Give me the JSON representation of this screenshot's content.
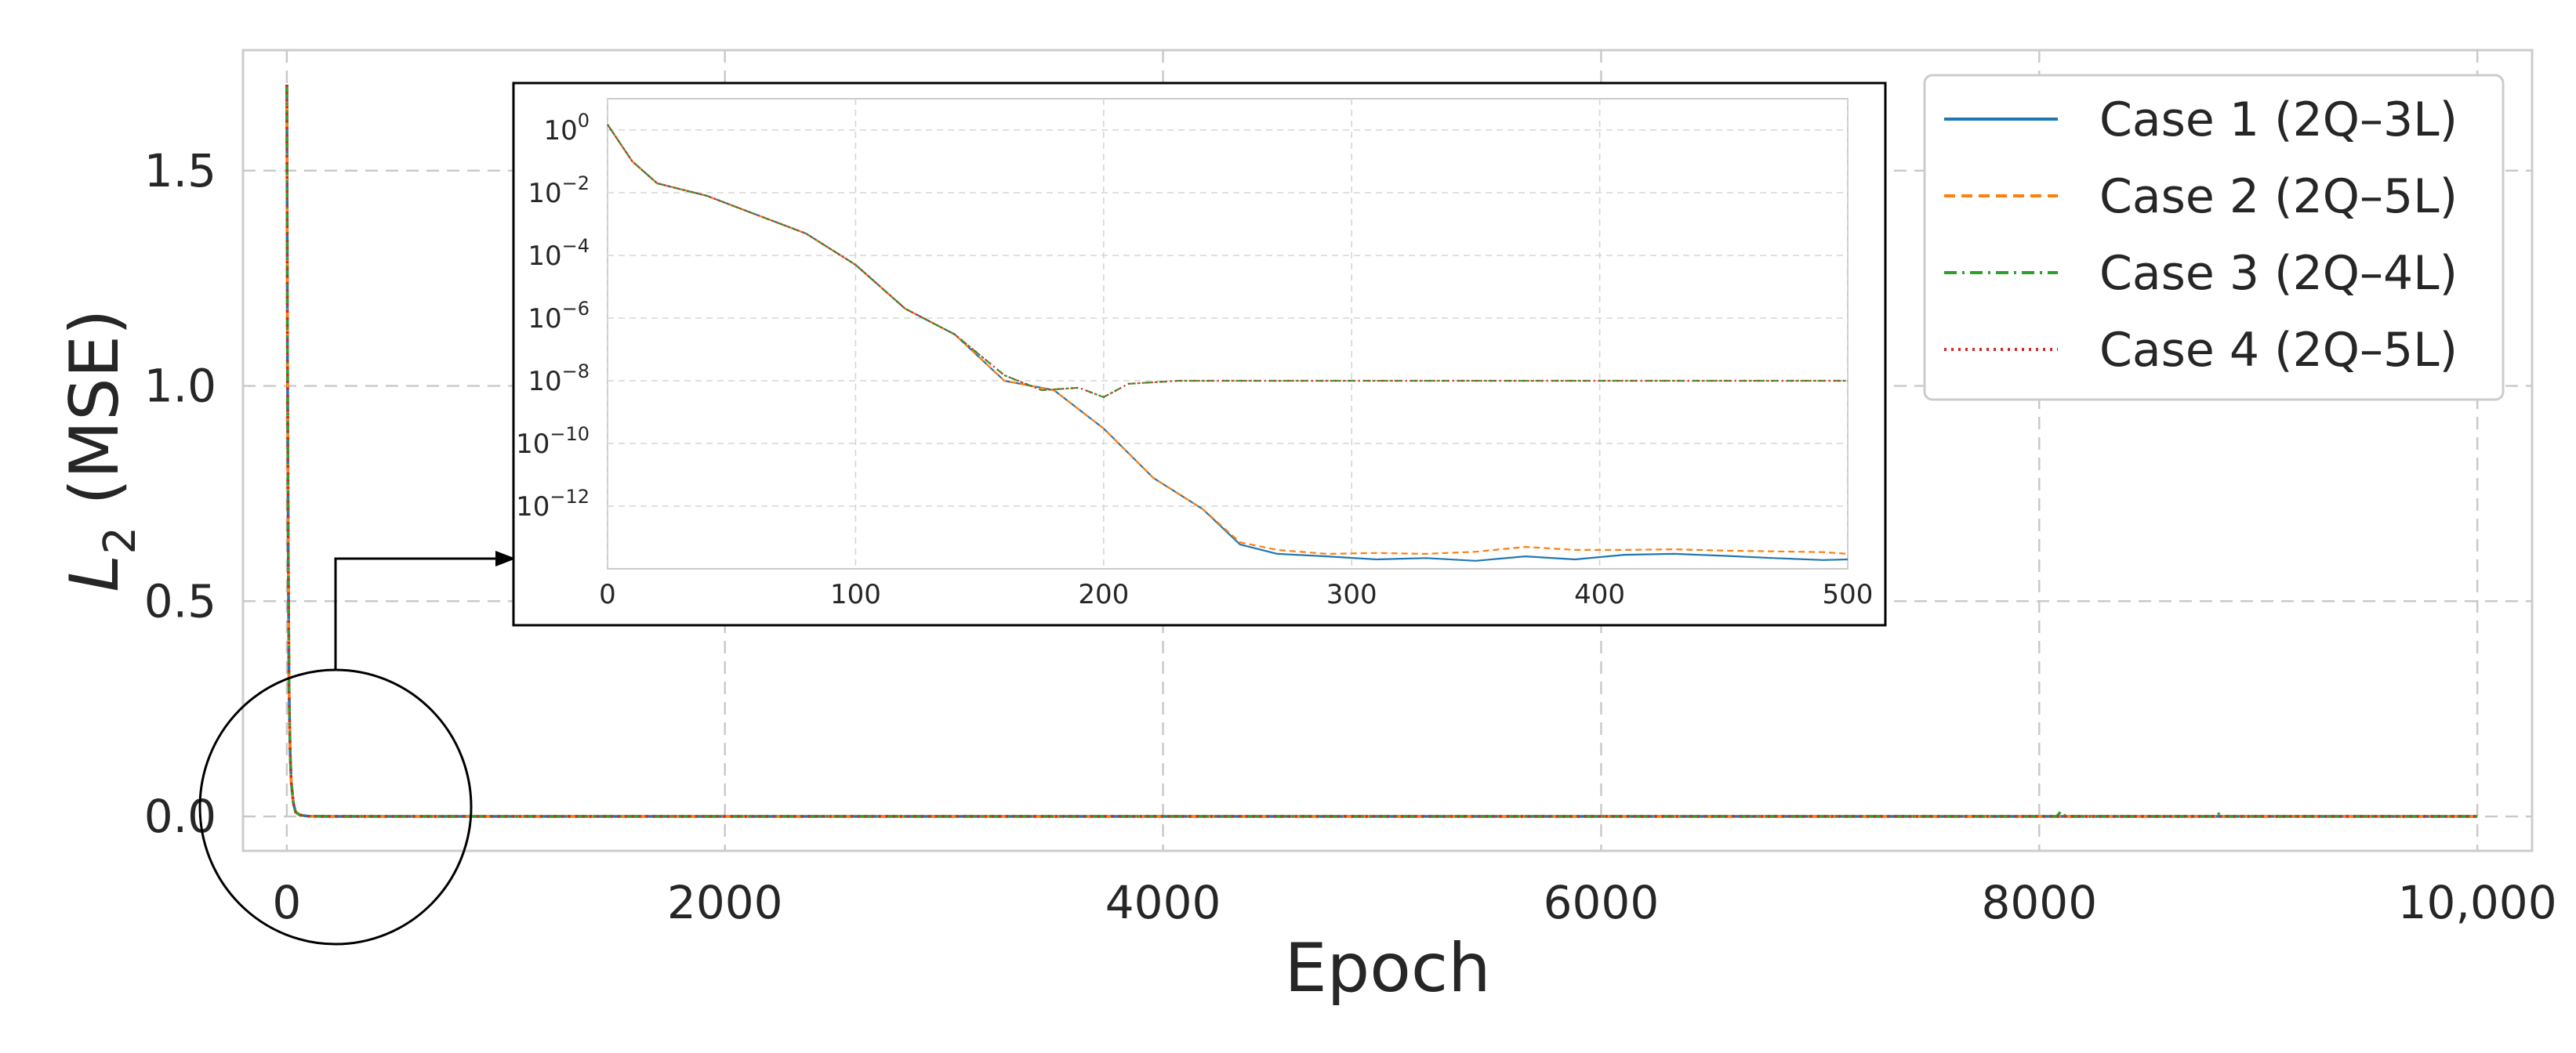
{
  "chart_data": [
    {
      "type": "line",
      "panel": "main",
      "title": "",
      "xlabel": "Epoch",
      "ylabel": "L2 (MSE)",
      "ylabel_base": "L",
      "ylabel_sub": "2",
      "ylabel_rest": " (MSE)",
      "xlim": [
        -200,
        10250
      ],
      "ylim": [
        -0.08,
        1.78
      ],
      "xticks": [
        0,
        2000,
        4000,
        6000,
        8000,
        10000
      ],
      "xtick_labels": [
        "0",
        "2000",
        "4000",
        "6000",
        "8000",
        "10,000"
      ],
      "yticks": [
        0.0,
        0.5,
        1.0,
        1.5
      ],
      "ytick_labels": [
        "0.0",
        "0.5",
        "1.0",
        "1.5"
      ],
      "grid": true,
      "legend_position": "top-right",
      "series": [
        {
          "name": "Case 1 (2Q–3L)",
          "color": "#1f77b4",
          "dash": "solid",
          "x": [
            0,
            3,
            6,
            10,
            15,
            20,
            30,
            40,
            60,
            100,
            200,
            1000,
            5000,
            8000,
            8100,
            8200,
            10000
          ],
          "y": [
            1.7,
            1.1,
            0.65,
            0.3,
            0.15,
            0.08,
            0.03,
            0.01,
            0.003,
            0.0005,
            1e-05,
            0,
            0,
            0,
            0,
            0,
            0
          ]
        },
        {
          "name": "Case 2 (2Q–5L)",
          "color": "#ff7f0e",
          "dash": "dashed",
          "x": [
            0,
            3,
            6,
            10,
            15,
            20,
            30,
            40,
            60,
            100,
            200,
            1000,
            5000,
            8000,
            10000
          ],
          "y": [
            1.7,
            1.1,
            0.65,
            0.3,
            0.15,
            0.08,
            0.03,
            0.01,
            0.003,
            0.0005,
            1e-05,
            0,
            0,
            0,
            0
          ]
        },
        {
          "name": "Case 3 (2Q–4L)",
          "color": "#2ca02c",
          "dash": "dashdot",
          "x": [
            0,
            3,
            6,
            10,
            15,
            20,
            30,
            40,
            60,
            100,
            200,
            1000,
            5000,
            8080,
            8100,
            8120,
            8800,
            8820,
            8840,
            10000
          ],
          "y": [
            1.7,
            1.1,
            0.65,
            0.3,
            0.15,
            0.08,
            0.03,
            0.01,
            0.003,
            0.0005,
            1e-05,
            0,
            0,
            0,
            0.012,
            0,
            0,
            0.006,
            0,
            0
          ]
        },
        {
          "name": "Case 4 (2Q–5L)",
          "color": "#d62728",
          "dash": "dotted",
          "x": [
            0,
            3,
            6,
            10,
            15,
            20,
            30,
            40,
            60,
            100,
            200,
            1000,
            5000,
            8000,
            10000
          ],
          "y": [
            1.7,
            1.1,
            0.65,
            0.3,
            0.15,
            0.08,
            0.03,
            0.01,
            0.003,
            0.0005,
            1e-05,
            0,
            0,
            0,
            0
          ]
        }
      ]
    },
    {
      "type": "line",
      "panel": "inset",
      "title": "",
      "xlabel": "",
      "ylabel": "",
      "yscale": "log",
      "xlim": [
        0,
        500
      ],
      "ylim": [
        1e-14,
        10
      ],
      "xticks": [
        0,
        100,
        200,
        300,
        400,
        500
      ],
      "xtick_labels": [
        "0",
        "100",
        "200",
        "300",
        "400",
        "500"
      ],
      "yticks_exp": [
        0,
        -2,
        -4,
        -6,
        -8,
        -10,
        -12
      ],
      "ytick_base": "10",
      "ytick_exp_labels": [
        "0",
        "−2",
        "−4",
        "−6",
        "−8",
        "−10",
        "−12"
      ],
      "grid": true,
      "series": [
        {
          "name": "Case 1 (2Q–3L)",
          "color": "#1f77b4",
          "dash": "solid",
          "x": [
            0,
            10,
            20,
            40,
            60,
            80,
            100,
            120,
            140,
            160,
            180,
            200,
            220,
            240,
            255,
            270,
            290,
            310,
            330,
            350,
            370,
            390,
            410,
            430,
            450,
            470,
            490,
            500
          ],
          "y": [
            1.5,
            0.1,
            0.02,
            0.008,
            0.002,
            0.0005,
            5e-05,
            2e-06,
            3e-07,
            1e-08,
            5e-09,
            3e-10,
            8e-12,
            8e-13,
            6e-14,
            3e-14,
            2.5e-14,
            2e-14,
            2.2e-14,
            1.8e-14,
            2.5e-14,
            2e-14,
            2.8e-14,
            3e-14,
            2.6e-14,
            2.2e-14,
            1.9e-14,
            2e-14
          ]
        },
        {
          "name": "Case 2 (2Q–5L)",
          "color": "#ff7f0e",
          "dash": "dashed",
          "x": [
            0,
            10,
            20,
            40,
            60,
            80,
            100,
            120,
            140,
            160,
            180,
            200,
            220,
            240,
            255,
            270,
            290,
            310,
            330,
            350,
            370,
            390,
            410,
            430,
            450,
            470,
            490,
            500
          ],
          "y": [
            1.5,
            0.1,
            0.02,
            0.008,
            0.002,
            0.0005,
            5e-05,
            2e-06,
            3e-07,
            1e-08,
            5e-09,
            3e-10,
            8e-12,
            8e-13,
            7e-14,
            4e-14,
            3e-14,
            3.2e-14,
            3e-14,
            3.5e-14,
            5e-14,
            4e-14,
            4e-14,
            4.2e-14,
            3.8e-14,
            3.6e-14,
            3.4e-14,
            3e-14
          ]
        },
        {
          "name": "Case 3 (2Q–4L)",
          "color": "#2ca02c",
          "dash": "dashdot",
          "x": [
            0,
            10,
            20,
            40,
            60,
            80,
            100,
            120,
            140,
            160,
            175,
            190,
            200,
            210,
            230,
            260,
            300,
            400,
            500
          ],
          "y": [
            1.5,
            0.1,
            0.02,
            0.008,
            0.002,
            0.0005,
            5e-05,
            2e-06,
            3e-07,
            1.5e-08,
            5e-09,
            6e-09,
            3e-09,
            8e-09,
            1e-08,
            1e-08,
            1e-08,
            1e-08,
            1e-08
          ]
        },
        {
          "name": "Case 4 (2Q–5L)",
          "color": "#d62728",
          "dash": "dotted",
          "x": [
            0,
            10,
            20,
            40,
            60,
            80,
            100,
            120,
            140,
            160,
            175,
            190,
            200,
            210,
            230,
            260,
            300,
            400,
            500
          ],
          "y": [
            1.5,
            0.1,
            0.02,
            0.008,
            0.002,
            0.0005,
            5e-05,
            2e-06,
            3e-07,
            1.5e-08,
            5e-09,
            6e-09,
            3e-09,
            8e-09,
            1e-08,
            1e-08,
            1e-08,
            1e-08,
            1e-08
          ]
        }
      ]
    }
  ]
}
